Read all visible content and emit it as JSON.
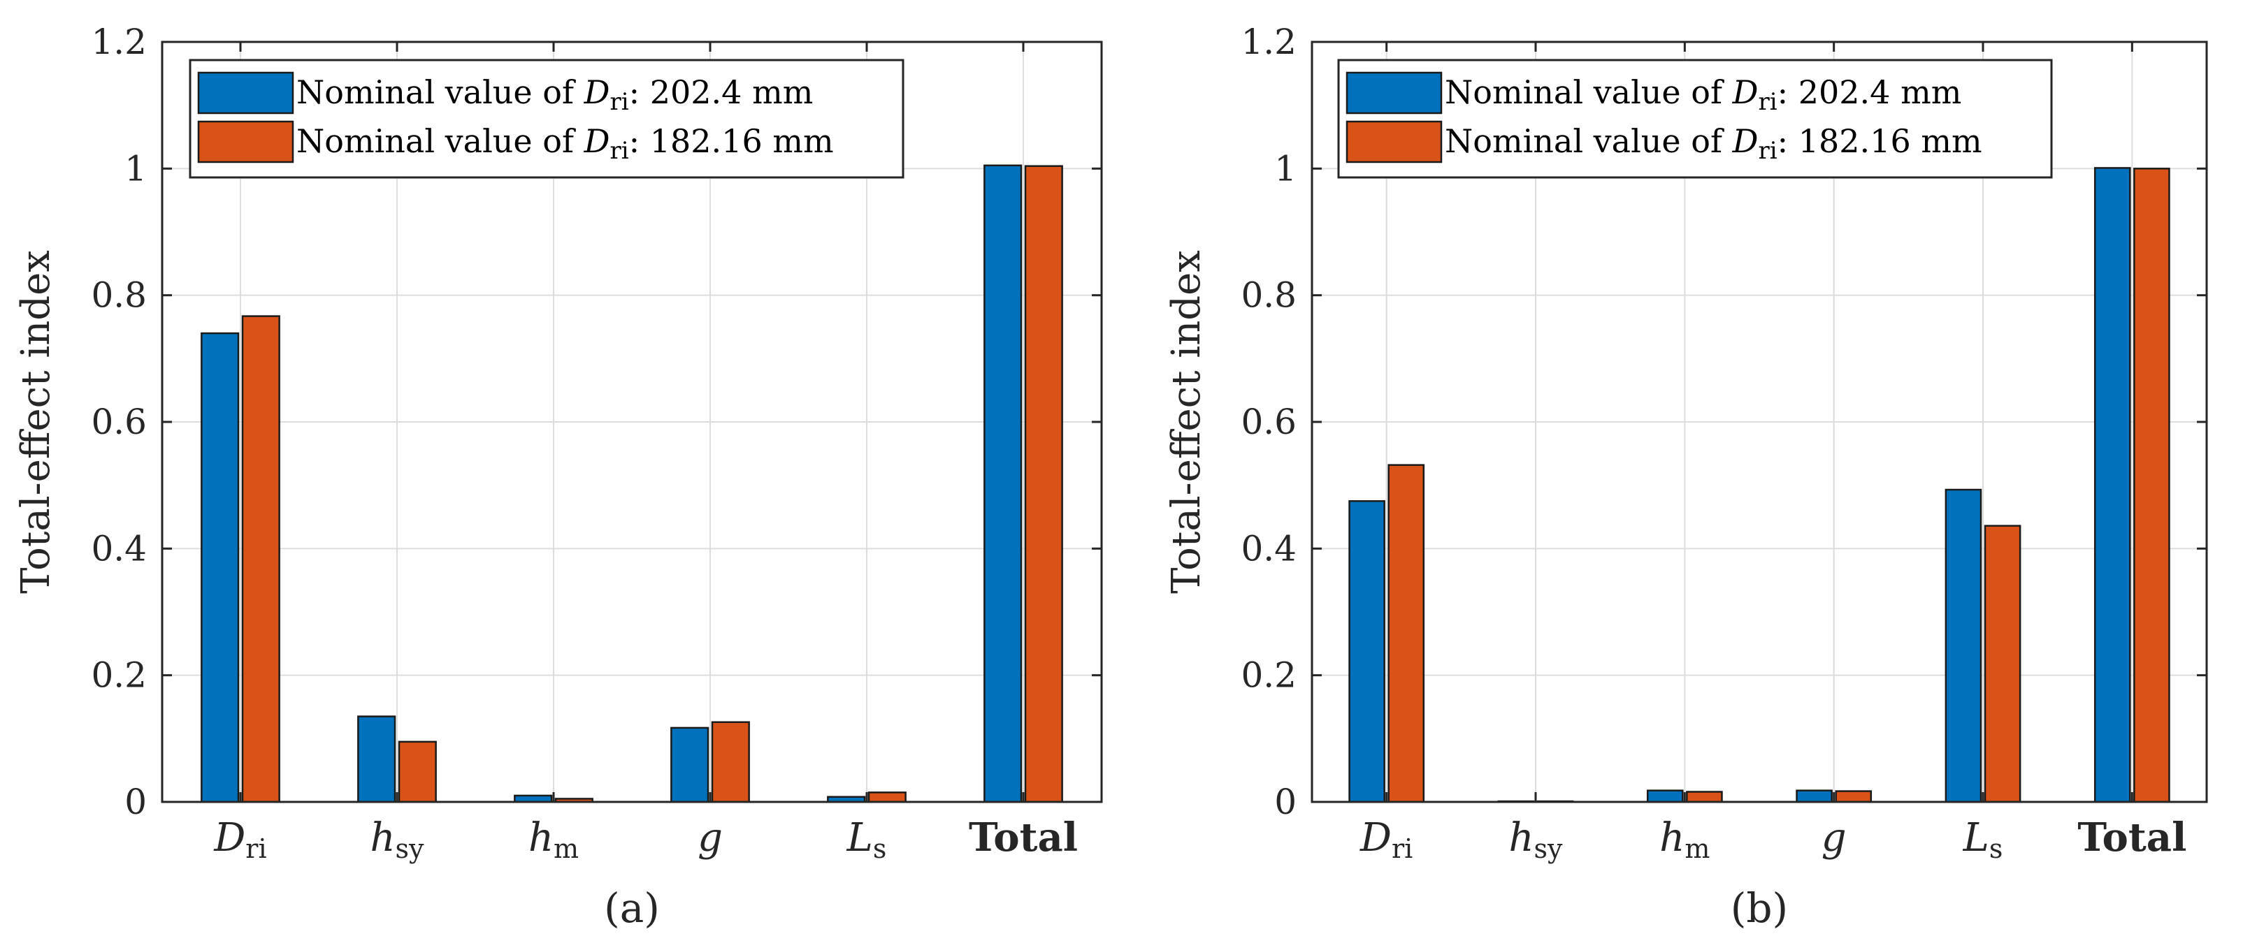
{
  "chart_data": [
    {
      "type": "bar",
      "caption": "(a)",
      "ylabel": "Total-effect index",
      "ylim": [
        0,
        1.2
      ],
      "yticks": [
        "0",
        "0.2",
        "0.4",
        "0.6",
        "0.8",
        "1",
        "1.2"
      ],
      "grid": true,
      "legend_position": "top-left",
      "categories": [
        {
          "main": "D",
          "sub": "ri",
          "italic": true,
          "bold": false
        },
        {
          "main": "h",
          "sub": "sy",
          "italic": true,
          "bold": false
        },
        {
          "main": "h",
          "sub": "m",
          "italic": true,
          "bold": false
        },
        {
          "main": "g",
          "sub": "",
          "italic": true,
          "bold": false
        },
        {
          "main": "L",
          "sub": "s",
          "italic": true,
          "bold": false
        },
        {
          "main": "Total",
          "sub": "",
          "italic": false,
          "bold": true
        }
      ],
      "series": [
        {
          "name_prefix": "Nominal value of ",
          "name_var": "D",
          "name_sub": "ri",
          "name_suffix": ":  202.4 mm",
          "color": "#0072BD",
          "values": [
            0.74,
            0.135,
            0.01,
            0.117,
            0.008,
            1.005
          ]
        },
        {
          "name_prefix": "Nominal value of ",
          "name_var": "D",
          "name_sub": "ri",
          "name_suffix": ":  182.16 mm",
          "color": "#D95319",
          "values": [
            0.767,
            0.095,
            0.005,
            0.126,
            0.015,
            1.004
          ]
        }
      ]
    },
    {
      "type": "bar",
      "caption": "(b)",
      "ylabel": "Total-effect index",
      "ylim": [
        0,
        1.2
      ],
      "yticks": [
        "0",
        "0.2",
        "0.4",
        "0.6",
        "0.8",
        "1",
        "1.2"
      ],
      "grid": true,
      "legend_position": "top-left",
      "categories": [
        {
          "main": "D",
          "sub": "ri",
          "italic": true,
          "bold": false
        },
        {
          "main": "h",
          "sub": "sy",
          "italic": true,
          "bold": false
        },
        {
          "main": "h",
          "sub": "m",
          "italic": true,
          "bold": false
        },
        {
          "main": "g",
          "sub": "",
          "italic": true,
          "bold": false
        },
        {
          "main": "L",
          "sub": "s",
          "italic": true,
          "bold": false
        },
        {
          "main": "Total",
          "sub": "",
          "italic": false,
          "bold": true
        }
      ],
      "series": [
        {
          "name_prefix": "Nominal value of ",
          "name_var": "D",
          "name_sub": "ri",
          "name_suffix": ":  202.4 mm",
          "color": "#0072BD",
          "values": [
            0.475,
            0.001,
            0.018,
            0.018,
            0.493,
            1.001
          ]
        },
        {
          "name_prefix": "Nominal value of ",
          "name_var": "D",
          "name_sub": "ri",
          "name_suffix": ":  182.16 mm",
          "color": "#D95319",
          "values": [
            0.532,
            0.001,
            0.016,
            0.017,
            0.436,
            1.0
          ]
        }
      ]
    }
  ]
}
